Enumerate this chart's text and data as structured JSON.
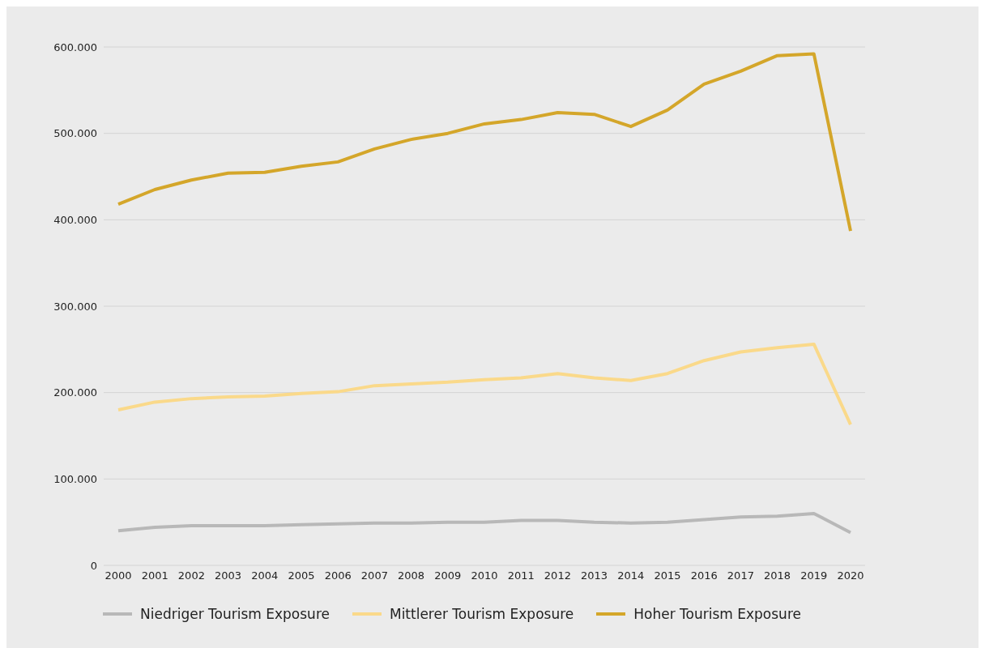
{
  "chart_data": {
    "type": "line",
    "categories": [
      "2000",
      "2001",
      "2002",
      "2003",
      "2004",
      "2005",
      "2006",
      "2007",
      "2008",
      "2009",
      "2010",
      "2011",
      "2012",
      "2013",
      "2014",
      "2015",
      "2016",
      "2017",
      "2018",
      "2019",
      "2020"
    ],
    "series": [
      {
        "name": "Niedriger Tourism Exposure",
        "color": "#b8b8b8",
        "values": [
          40000,
          44000,
          46000,
          46000,
          46000,
          47000,
          48000,
          49000,
          49000,
          50000,
          50000,
          52000,
          52000,
          50000,
          49000,
          50000,
          53000,
          56000,
          57000,
          60000,
          38000
        ]
      },
      {
        "name": "Mittlerer Tourism Exposure",
        "color": "#fad98a",
        "values": [
          180000,
          189000,
          193000,
          195000,
          196000,
          199000,
          201000,
          208000,
          210000,
          212000,
          215000,
          217000,
          222000,
          217000,
          214000,
          222000,
          237000,
          247000,
          252000,
          256000,
          163000
        ]
      },
      {
        "name": "Hoher Tourism Exposure",
        "color": "#d4a62a",
        "values": [
          418000,
          435000,
          446000,
          454000,
          455000,
          462000,
          467000,
          482000,
          493000,
          500000,
          511000,
          516000,
          524000,
          522000,
          508000,
          527000,
          557000,
          572000,
          590000,
          592000,
          387000
        ]
      }
    ],
    "ylim": [
      0,
      600000
    ],
    "yticks": [
      {
        "value": 0,
        "label": "0"
      },
      {
        "value": 100000,
        "label": "100.000"
      },
      {
        "value": 200000,
        "label": "200.000"
      },
      {
        "value": 300000,
        "label": "300.000"
      },
      {
        "value": 400000,
        "label": "400.000"
      },
      {
        "value": 500000,
        "label": "500.000"
      },
      {
        "value": 600000,
        "label": "600.000"
      }
    ],
    "grid": "y",
    "legend": "bottom",
    "marker": "none",
    "line_style": "solid"
  }
}
